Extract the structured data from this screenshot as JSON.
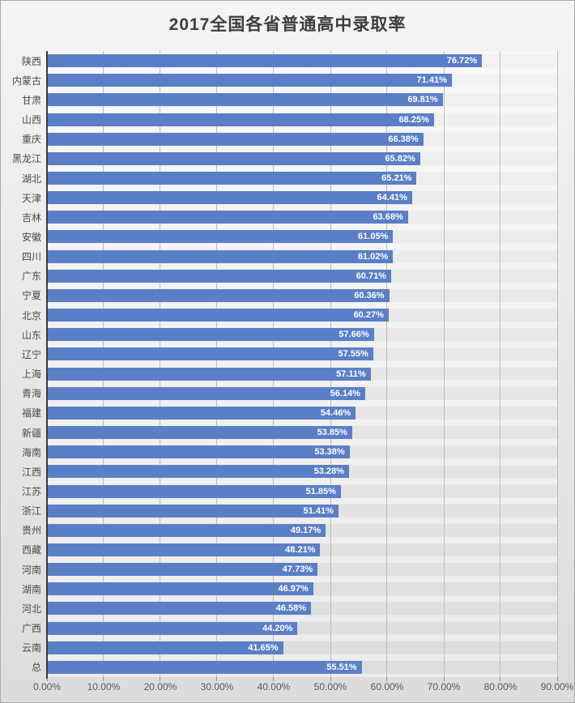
{
  "chart_data": {
    "type": "bar",
    "orientation": "horizontal",
    "title": "2017全国各省普通高中录取率",
    "xlabel": "",
    "ylabel": "",
    "xlim": [
      0,
      90
    ],
    "x_tick_step": 10,
    "x_tick_labels": [
      "0.00%",
      "10.00%",
      "20.00%",
      "30.00%",
      "40.00%",
      "50.00%",
      "60.00%",
      "70.00%",
      "80.00%",
      "90.00%"
    ],
    "grid": "vertical",
    "legend": "none",
    "value_label_format": "percent-2dp-inside-end",
    "categories": [
      "陕西",
      "内蒙古",
      "甘肃",
      "山西",
      "重庆",
      "黑龙江",
      "湖北",
      "天津",
      "吉林",
      "安徽",
      "四川",
      "广东",
      "宁夏",
      "北京",
      "山东",
      "辽宁",
      "上海",
      "青海",
      "福建",
      "新疆",
      "海南",
      "江西",
      "江苏",
      "浙江",
      "贵州",
      "西藏",
      "河南",
      "湖南",
      "河北",
      "广西",
      "云南",
      "总"
    ],
    "values": [
      76.72,
      71.41,
      69.81,
      68.25,
      66.38,
      65.82,
      65.21,
      64.41,
      63.68,
      61.05,
      61.02,
      60.71,
      60.36,
      60.27,
      57.66,
      57.55,
      57.11,
      56.14,
      54.46,
      53.85,
      53.38,
      53.28,
      51.85,
      51.41,
      49.17,
      48.21,
      47.73,
      46.97,
      46.58,
      44.2,
      41.65,
      55.51
    ],
    "value_labels": [
      "76.72%",
      "71.41%",
      "69.81%",
      "68.25%",
      "66.38%",
      "65.82%",
      "65.21%",
      "64.41%",
      "63.68%",
      "61.05%",
      "61.02%",
      "60.71%",
      "60.36%",
      "60.27%",
      "57.66%",
      "57.55%",
      "57.11%",
      "56.14%",
      "54.46%",
      "53.85%",
      "53.38%",
      "53.28%",
      "51.85%",
      "51.41%",
      "49.17%",
      "48.21%",
      "47.73%",
      "46.97%",
      "46.58%",
      "44.20%",
      "41.65%",
      "55.51%"
    ],
    "colors": {
      "bar": "#5b7fc7",
      "background_top": "#f4f4f5",
      "background_bottom": "#dcdcdd",
      "gridline": "#bcbcbe",
      "axis_line": "#3a3a3a",
      "title_text": "#3d3d3d",
      "axis_text": "#595959",
      "value_text": "#ffffff"
    }
  }
}
